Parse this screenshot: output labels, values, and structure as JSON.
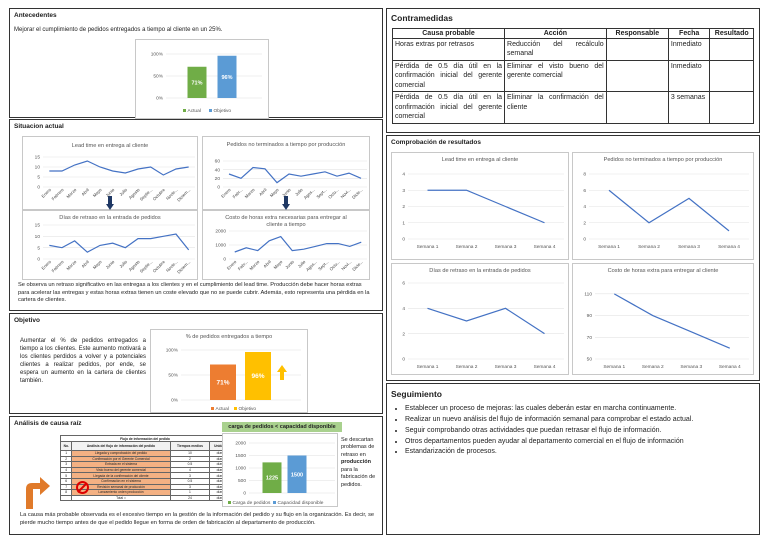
{
  "antecedentes": {
    "title": "Antecedentes",
    "text": "Mejorar el cumplimiento de pedidos entregados a tiempo al cliente en un 25%.",
    "chart": {
      "ticks": [
        "100%",
        "50%",
        "0%"
      ],
      "legend": [
        "Actual",
        "Objetivo"
      ]
    }
  },
  "situacion": {
    "title": "Situacion actual",
    "text": "Se observa un retraso significativo en las entregas a los clientes y en el cumplimiento del lead time. Producción debe hacer horas extras para acelerar las entregas y estas horas extras tienen un coste elevado que no se puede cubrir. Además, esto representa una pérdida en la cartera de clientes.",
    "months": [
      "Enero",
      "Febrero",
      "Marzo",
      "Abril",
      "Mayo",
      "Junio",
      "Julio",
      "Agosto",
      "Septie...",
      "Octubre",
      "Novie...",
      "Diciem..."
    ],
    "months_short": [
      "Enero",
      "Febr...",
      "Marzo",
      "Abril",
      "Mayo",
      "Junio",
      "Julio",
      "Agos...",
      "Sept...",
      "Octu...",
      "Novi...",
      "Dicie..."
    ]
  },
  "objetivo": {
    "title": "Objetivo",
    "text": "Aumentar el % de pedidos entregados a tiempo a los clientes. Este aumento motivará a los clientes perdidos a volver y a potenciales clientes a realizar pedidos, por ende, se espera un aumento en la cartera de clientes también.",
    "chart_title": "% de pedidos entregados a tiempo",
    "ticks": [
      "100%",
      "50%",
      "0%"
    ],
    "legend": [
      "Actual",
      "Objetivo"
    ]
  },
  "analisis": {
    "title": "Análisis de causa raíz",
    "table_title": "Flujo de información del pedido",
    "headers": [
      "No.",
      "Análisis del flujo de información del pedido",
      "Tiempos medios",
      "Unidad"
    ],
    "rows": [
      [
        "1",
        "Llegada y comprobación del pedido",
        "10",
        "días"
      ],
      [
        "2",
        "Confirmación por el Gerente Comercial",
        "2",
        "días"
      ],
      [
        "3",
        "Entrada en el sistema",
        "0.5",
        "días"
      ],
      [
        "4",
        "Visto bueno del gerente comercial",
        "4",
        "días"
      ],
      [
        "5",
        "Llegada de la confirmación del cliente",
        "3",
        "días"
      ],
      [
        "6",
        "Confirmación en el sistema",
        "0.5",
        "días"
      ],
      [
        "7",
        "Revisión semanal de producción",
        "3",
        "días"
      ],
      [
        "8",
        "Lanzamiento orden producción",
        "1",
        "días"
      ],
      [
        "",
        "Total =",
        "24",
        "días"
      ]
    ],
    "green_label": "carga de pedidos < capacidad disponible",
    "ticks": [
      "2000",
      "1500",
      "1000",
      "500",
      "0"
    ],
    "legend": [
      "Carga de pedidos",
      "Capacidad disponible"
    ],
    "side_text_1": "Se descartan problemas de retraso en",
    "side_text_bold": "producción",
    "side_text_2": "para la fabricación de pedidos.",
    "bottom_text": "La causa más probable observada es el excesivo tiempo en la gestión de la información del pedido y su flujo en la organización. Es decir, se pierde mucho tiempo antes de que el pedido llegue en forma de orden de fabricación al departamento de producción."
  },
  "contramedidas": {
    "title": "Contramedidas",
    "headers": [
      "Causa probable",
      "Acción",
      "Responsable",
      "Fecha",
      "Resultado"
    ],
    "rows": [
      [
        "Horas extras por retrasos",
        "Reducción del recálculo semanal",
        "",
        "Inmediato",
        ""
      ],
      [
        "Pérdida de 0.5 día útil en la confirmación inicial del gerente comercial",
        "Eliminar el visto bueno del gerente comercial",
        "",
        "Inmediato",
        ""
      ],
      [
        "Pérdida de 0.5 día útil en la confirmación inicial del gerente comercial",
        "Eliminar la confirmación del cliente",
        "",
        "3 semanas",
        ""
      ]
    ]
  },
  "comprobacion": {
    "title": "Comprobación de resultados",
    "weeks": [
      "Semana 1",
      "Semana 2",
      "Semana 3",
      "Semana 4"
    ]
  },
  "seguimiento": {
    "title": "Seguimiento",
    "items": [
      "Establecer un proceso de mejoras: las cuales deberán estar en marcha continuamente.",
      "Realizar un nuevo análisis del flujo de información semanal para comprobar el estado actual.",
      "Seguir comprobando otras actividades que puedan retrasar el flujo de información.",
      "Otros departamentos pueden ayudar al departamento comercial en el flujo de información",
      "Estandarización de procesos."
    ]
  },
  "colors": {
    "actual": "#70ad47",
    "objetivo": "#5b9bd5",
    "line": "#4472c4",
    "orange": "#ed7d31",
    "yellow": "#ffc000"
  },
  "chart_data": [
    {
      "type": "bar",
      "categories": [
        "Actual",
        "Objetivo"
      ],
      "values": [
        71,
        96
      ],
      "labels": [
        "71%",
        "96%"
      ],
      "ylim": [
        0,
        100
      ],
      "ticks": [
        "100%",
        "50%",
        "0%"
      ]
    },
    {
      "type": "line",
      "title": "Lead time en entrega al cliente",
      "categories": [
        "Enero",
        "Febrero",
        "Marzo",
        "Abril",
        "Mayo",
        "Junio",
        "Julio",
        "Agosto",
        "Septie...",
        "Octubre",
        "Novie...",
        "Diciem..."
      ],
      "values": [
        8,
        8,
        11,
        13,
        10,
        8,
        7,
        9,
        10,
        6,
        9,
        10
      ],
      "ylim": [
        0,
        15
      ],
      "ticks": [
        "15",
        "10",
        "5",
        "0"
      ]
    },
    {
      "type": "line",
      "title": "Pedidos no terminados a tiempo por producción",
      "categories": [
        "Enero",
        "Febr...",
        "Marzo",
        "Abril",
        "Mayo",
        "Junio",
        "Julio",
        "Agos...",
        "Sept...",
        "Octu...",
        "Novi...",
        "Dicie..."
      ],
      "values": [
        30,
        20,
        45,
        42,
        10,
        30,
        25,
        30,
        35,
        25,
        32,
        20
      ],
      "ylim": [
        0,
        60
      ],
      "ticks": [
        "60",
        "40",
        "20",
        "0"
      ]
    },
    {
      "type": "line",
      "title": "Días de retraso en la entrada de pedidos",
      "categories": [
        "Enero",
        "Febrero",
        "Marzo",
        "Abril",
        "Mayo",
        "Junio",
        "Julio",
        "Agosto",
        "Septie...",
        "Octubre",
        "Novie...",
        "Diciem..."
      ],
      "values": [
        6,
        5,
        8,
        3,
        6,
        7,
        5,
        9,
        9,
        10,
        11,
        4
      ],
      "ylim": [
        0,
        15
      ],
      "ticks": [
        "15",
        "10",
        "5",
        "0"
      ]
    },
    {
      "type": "line",
      "title": "Costo de horas extra necesarias para entregar al cliente a tiempo",
      "categories": [
        "Enero",
        "Febr...",
        "Marzo",
        "Abril",
        "Mayo",
        "Junio",
        "Julio",
        "Agos...",
        "Sept...",
        "Octu...",
        "Novi...",
        "Dicie..."
      ],
      "values": [
        500,
        800,
        600,
        1300,
        1600,
        600,
        700,
        900,
        1100,
        1100,
        900,
        1200
      ],
      "ylim": [
        0,
        2000
      ],
      "ticks": [
        "2000",
        "1000",
        "0"
      ]
    },
    {
      "type": "bar",
      "title": "% de pedidos entregados a tiempo",
      "categories": [
        "Actual",
        "Objetivo"
      ],
      "values": [
        71,
        96
      ],
      "labels": [
        "71%",
        "96%"
      ],
      "ylim": [
        0,
        100
      ],
      "ticks": [
        "100%",
        "50%",
        "0%"
      ]
    },
    {
      "type": "bar",
      "categories": [
        "Carga de pedidos",
        "Capacidad disponible"
      ],
      "values": [
        1225,
        1500
      ],
      "labels": [
        "1225",
        "1500"
      ],
      "ylim": [
        0,
        2000
      ],
      "ticks": [
        "2000",
        "1500",
        "1000",
        "500",
        "0"
      ]
    },
    {
      "type": "line",
      "title": "Lead time en entrega al cliente",
      "categories": [
        "Semana 1",
        "Semana 2",
        "Semana 3",
        "Semana 4"
      ],
      "values": [
        3,
        3,
        2,
        1
      ],
      "ylim": [
        0,
        4
      ],
      "ticks": [
        "4",
        "3",
        "2",
        "1",
        "0"
      ]
    },
    {
      "type": "line",
      "title": "Pedidos no terminados a tiempo por producción",
      "categories": [
        "Semana 1",
        "Semana 2",
        "Semana 3",
        "Semana 4"
      ],
      "values": [
        6,
        2,
        5,
        1
      ],
      "ylim": [
        0,
        8
      ],
      "ticks": [
        "8",
        "6",
        "4",
        "2",
        "0"
      ]
    },
    {
      "type": "line",
      "title": "Días de retraso en la entrada de pedidos",
      "categories": [
        "Semana 1",
        "Semana 2",
        "Semana 3",
        "Semana 4"
      ],
      "values": [
        4,
        3,
        4,
        2
      ],
      "ylim": [
        0,
        6
      ],
      "ticks": [
        "6",
        "4",
        "2",
        "0"
      ]
    },
    {
      "type": "line",
      "title": "Costo de horas extra para entregar al cliente",
      "categories": [
        "Semana 1",
        "Semana 2",
        "Semana 3",
        "Semana 4"
      ],
      "values": [
        110,
        90,
        75,
        60
      ],
      "ylim": [
        50,
        120
      ],
      "ticks": [
        "110",
        "90",
        "70",
        "50"
      ]
    }
  ]
}
